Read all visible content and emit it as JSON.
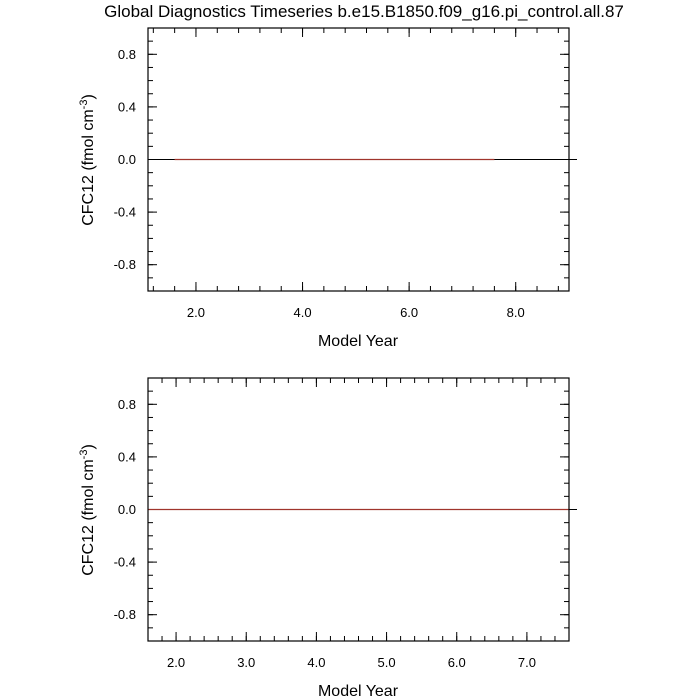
{
  "title": "Global Diagnostics Timeseries b.e15.B1850.f09_g16.pi_control.all.87",
  "chart_data": [
    {
      "type": "line",
      "xlabel": "Model Year",
      "ylabel_main": "CFC12 (fmol cm",
      "ylabel_sup": "-3",
      "ylabel_close": ")",
      "xlim": [
        1.1,
        9.0
      ],
      "ylim": [
        -1.0,
        1.0
      ],
      "x_ticks": [
        2.0,
        4.0,
        6.0,
        8.0
      ],
      "x_tick_labels": [
        "2.0",
        "4.0",
        "6.0",
        "8.0"
      ],
      "y_ticks": [
        -0.8,
        -0.4,
        0.0,
        0.4,
        0.8
      ],
      "y_tick_labels": [
        "-0.8",
        "-0.4",
        "0.0",
        "0.4",
        "0.8"
      ],
      "reference_line": 0.0,
      "series": [
        {
          "color": "#a0342c",
          "x": [
            1.6,
            7.6
          ],
          "y": [
            0.0,
            0.0
          ]
        }
      ]
    },
    {
      "type": "line",
      "xlabel": "Model Year",
      "ylabel_main": "CFC12 (fmol cm",
      "ylabel_sup": "-3",
      "ylabel_close": ")",
      "xlim": [
        1.6,
        7.6
      ],
      "ylim": [
        -1.0,
        1.0
      ],
      "x_ticks": [
        2.0,
        3.0,
        4.0,
        5.0,
        6.0,
        7.0
      ],
      "x_tick_labels": [
        "2.0",
        "3.0",
        "4.0",
        "5.0",
        "6.0",
        "7.0"
      ],
      "y_ticks": [
        -0.8,
        -0.4,
        0.0,
        0.4,
        0.8
      ],
      "y_tick_labels": [
        "-0.8",
        "-0.4",
        "0.0",
        "0.4",
        "0.8"
      ],
      "reference_line": 0.0,
      "series": [
        {
          "color": "#a0342c",
          "x": [
            1.6,
            7.6
          ],
          "y": [
            0.0,
            0.0
          ]
        }
      ]
    }
  ]
}
